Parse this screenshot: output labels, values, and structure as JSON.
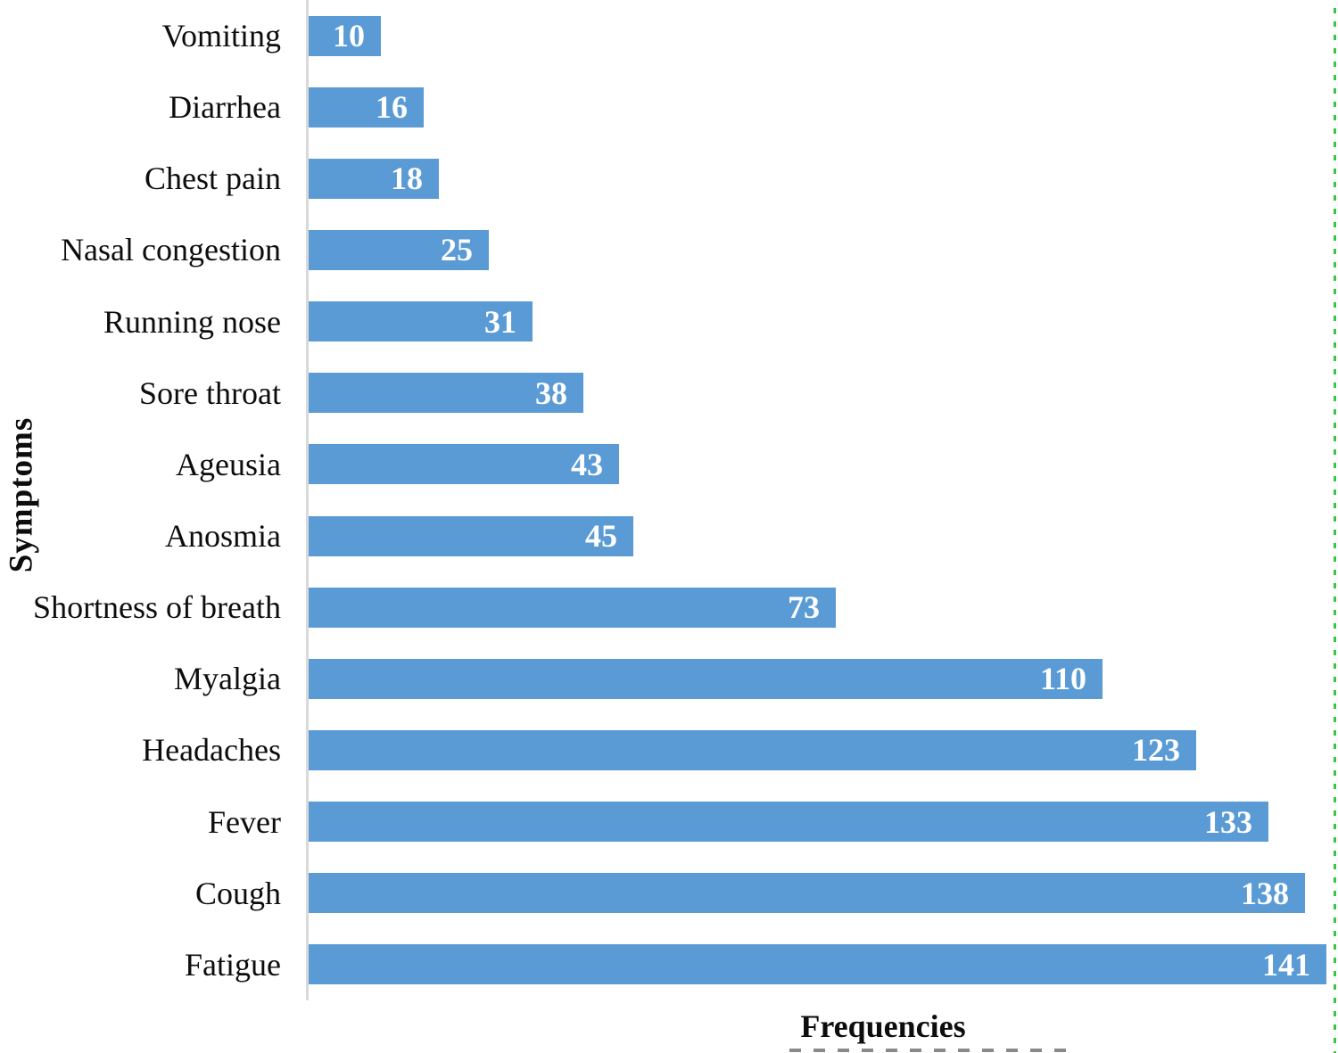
{
  "figure": {
    "y_axis_title": "Symptoms",
    "x_axis_title": "Frequencies"
  },
  "colors": {
    "bar": "#5b9bd5",
    "axis_line": "#d9d9d9",
    "category_text": "#0d0d0d",
    "value_text": "#ffffff",
    "selection_dash": "#35c940"
  },
  "chart_data": {
    "type": "bar",
    "orientation": "horizontal",
    "title": "",
    "xlabel": "Frequencies",
    "ylabel": "Symptoms",
    "categories": [
      "Vomiting",
      "Diarrhea",
      "Chest pain",
      "Nasal congestion",
      "Running nose",
      "Sore throat",
      "Ageusia",
      "Anosmia",
      "Shortness of breath",
      "Myalgia",
      "Headaches",
      "Fever",
      "Cough",
      "Fatigue"
    ],
    "values": [
      10,
      16,
      18,
      25,
      31,
      38,
      43,
      45,
      73,
      110,
      123,
      133,
      138,
      141
    ],
    "value_labels_position": "inside-end",
    "x_axis_ticks_visible": false,
    "grid": false,
    "legend": false,
    "xlim": [
      0,
      143
    ]
  }
}
